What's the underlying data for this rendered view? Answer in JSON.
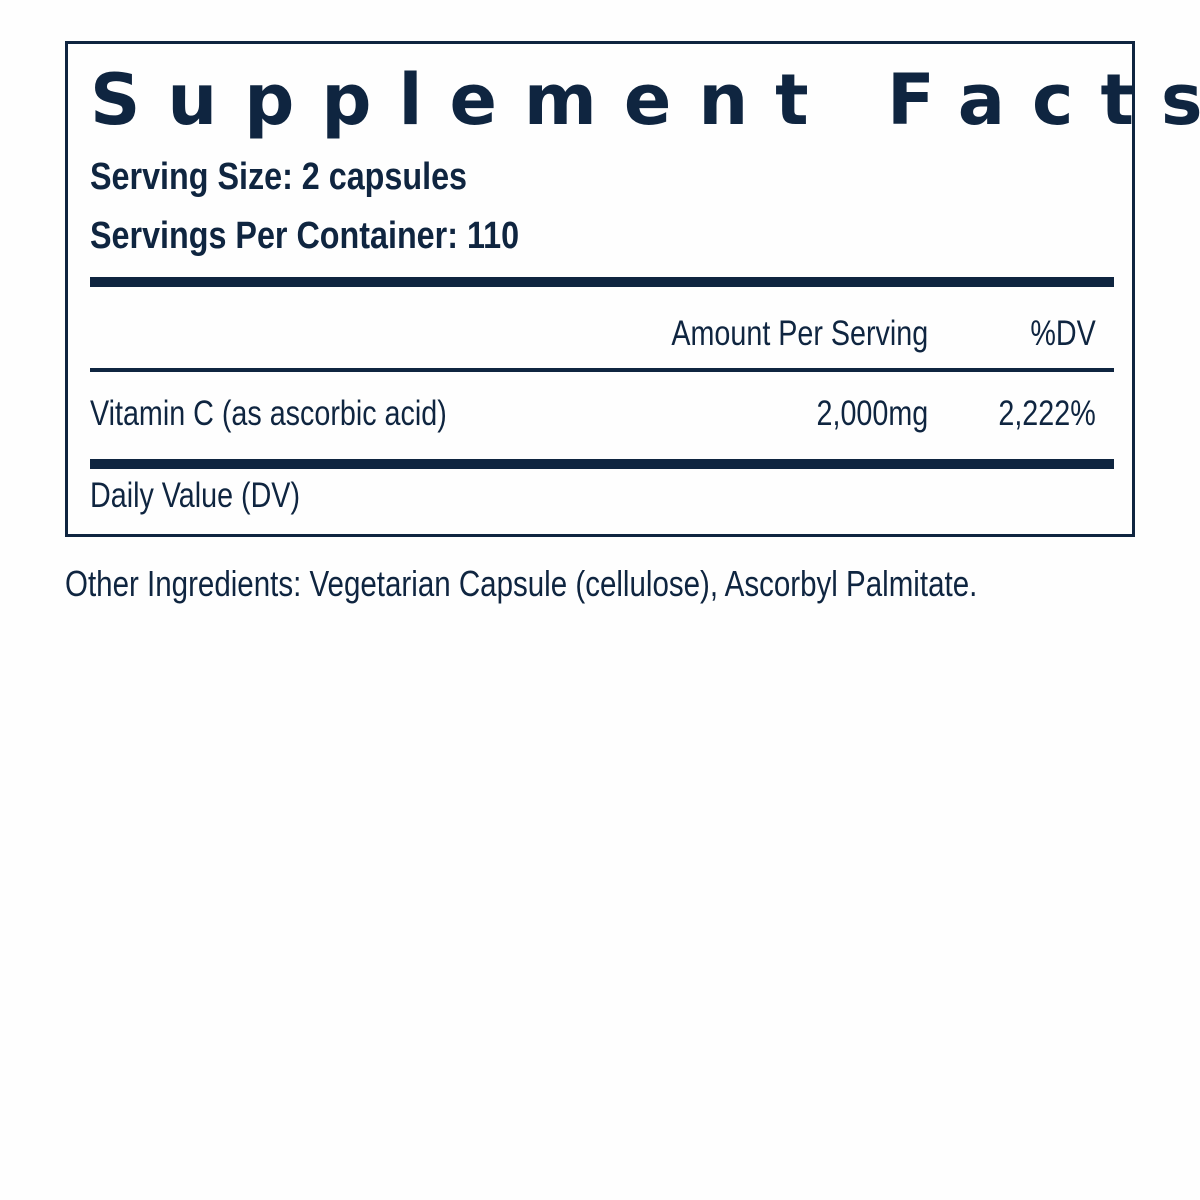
{
  "label": {
    "title": "Supplement Facts",
    "serving_size": "Serving Size: 2 capsules",
    "servings_per_container": "Servings Per Container: 110",
    "header": {
      "amount": "Amount Per Serving",
      "dv": "%DV"
    },
    "rows": [
      {
        "name": "Vitamin C (as ascorbic acid)",
        "amount": "2,000mg",
        "dv": "2,222%"
      }
    ],
    "footnote": "Daily Value (DV)"
  },
  "other_ingredients": "Other Ingredients: Vegetarian Capsule (cellulose), Ascorbyl Palmitate.",
  "colors": {
    "text": "#0f2540"
  }
}
